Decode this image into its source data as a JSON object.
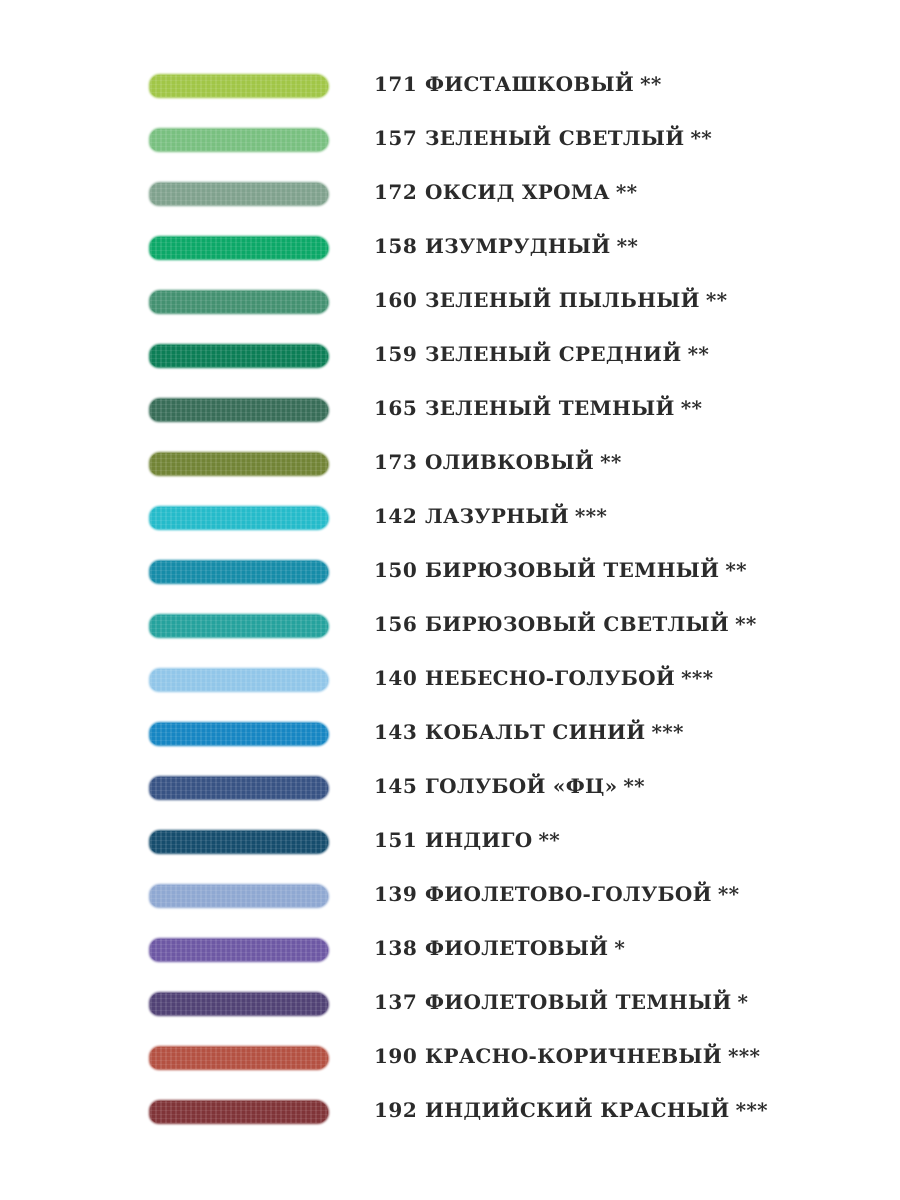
{
  "colors": [
    {
      "number": "171",
      "name": "ФИСТАШКОВЫЙ",
      "stars": "**",
      "color": "#9cc43e"
    },
    {
      "number": "157",
      "name": "ЗЕЛЕНЫЙ СВЕТЛЫЙ",
      "stars": "**",
      "color": "#72bd7a"
    },
    {
      "number": "172",
      "name": "ОКСИД ХРОМА",
      "stars": "**",
      "color": "#7a9e88"
    },
    {
      "number": "158",
      "name": "ИЗУМРУДНЫЙ",
      "stars": "**",
      "color": "#00a460"
    },
    {
      "number": "160",
      "name": "ЗЕЛЕНЫЙ ПЫЛЬНЫЙ",
      "stars": "**",
      "color": "#3a8c6a"
    },
    {
      "number": "159",
      "name": "ЗЕЛЕНЫЙ СРЕДНИЙ",
      "stars": "**",
      "color": "#00784e"
    },
    {
      "number": "165",
      "name": "ЗЕЛЕНЫЙ ТЕМНЫЙ",
      "stars": "**",
      "color": "#2e6650"
    },
    {
      "number": "173",
      "name": "ОЛИВКОВЫЙ",
      "stars": "**",
      "color": "#6b7e2c"
    },
    {
      "number": "142",
      "name": "ЛАЗУРНЫЙ",
      "stars": "***",
      "color": "#1ab8c8"
    },
    {
      "number": "150",
      "name": "БИРЮЗОВЫЙ ТЕМНЫЙ",
      "stars": "**",
      "color": "#0a86a4"
    },
    {
      "number": "156",
      "name": "БИРЮЗОВЫЙ СВЕТЛЫЙ",
      "stars": "**",
      "color": "#1a9e98"
    },
    {
      "number": "140",
      "name": "НЕБЕСНО-ГОЛУБОЙ",
      "stars": "***",
      "color": "#8cc4e8"
    },
    {
      "number": "143",
      "name": "КОБАЛЬТ СИНИЙ",
      "stars": "***",
      "color": "#0a80c0"
    },
    {
      "number": "145",
      "name": "ГОЛУБОЙ «ФЦ»",
      "stars": "**",
      "color": "#2e4a7e"
    },
    {
      "number": "151",
      "name": "ИНДИГО",
      "stars": "**",
      "color": "#0a4466"
    },
    {
      "number": "139",
      "name": "ФИОЛЕТОВО-ГОЛУБОЙ",
      "stars": "**",
      "color": "#8aa4d0"
    },
    {
      "number": "138",
      "name": "ФИОЛЕТОВЫЙ",
      "stars": "*",
      "color": "#6650a0"
    },
    {
      "number": "137",
      "name": "ФИОЛЕТОВЫЙ ТЕМНЫЙ",
      "stars": "*",
      "color": "#48386e"
    },
    {
      "number": "190",
      "name": "КРАСНО-КОРИЧНЕВЫЙ",
      "stars": "***",
      "color": "#b04838"
    },
    {
      "number": "192",
      "name": "ИНДИЙСКИЙ КРАСНЫЙ",
      "stars": "***",
      "color": "#7a2a2e"
    }
  ]
}
